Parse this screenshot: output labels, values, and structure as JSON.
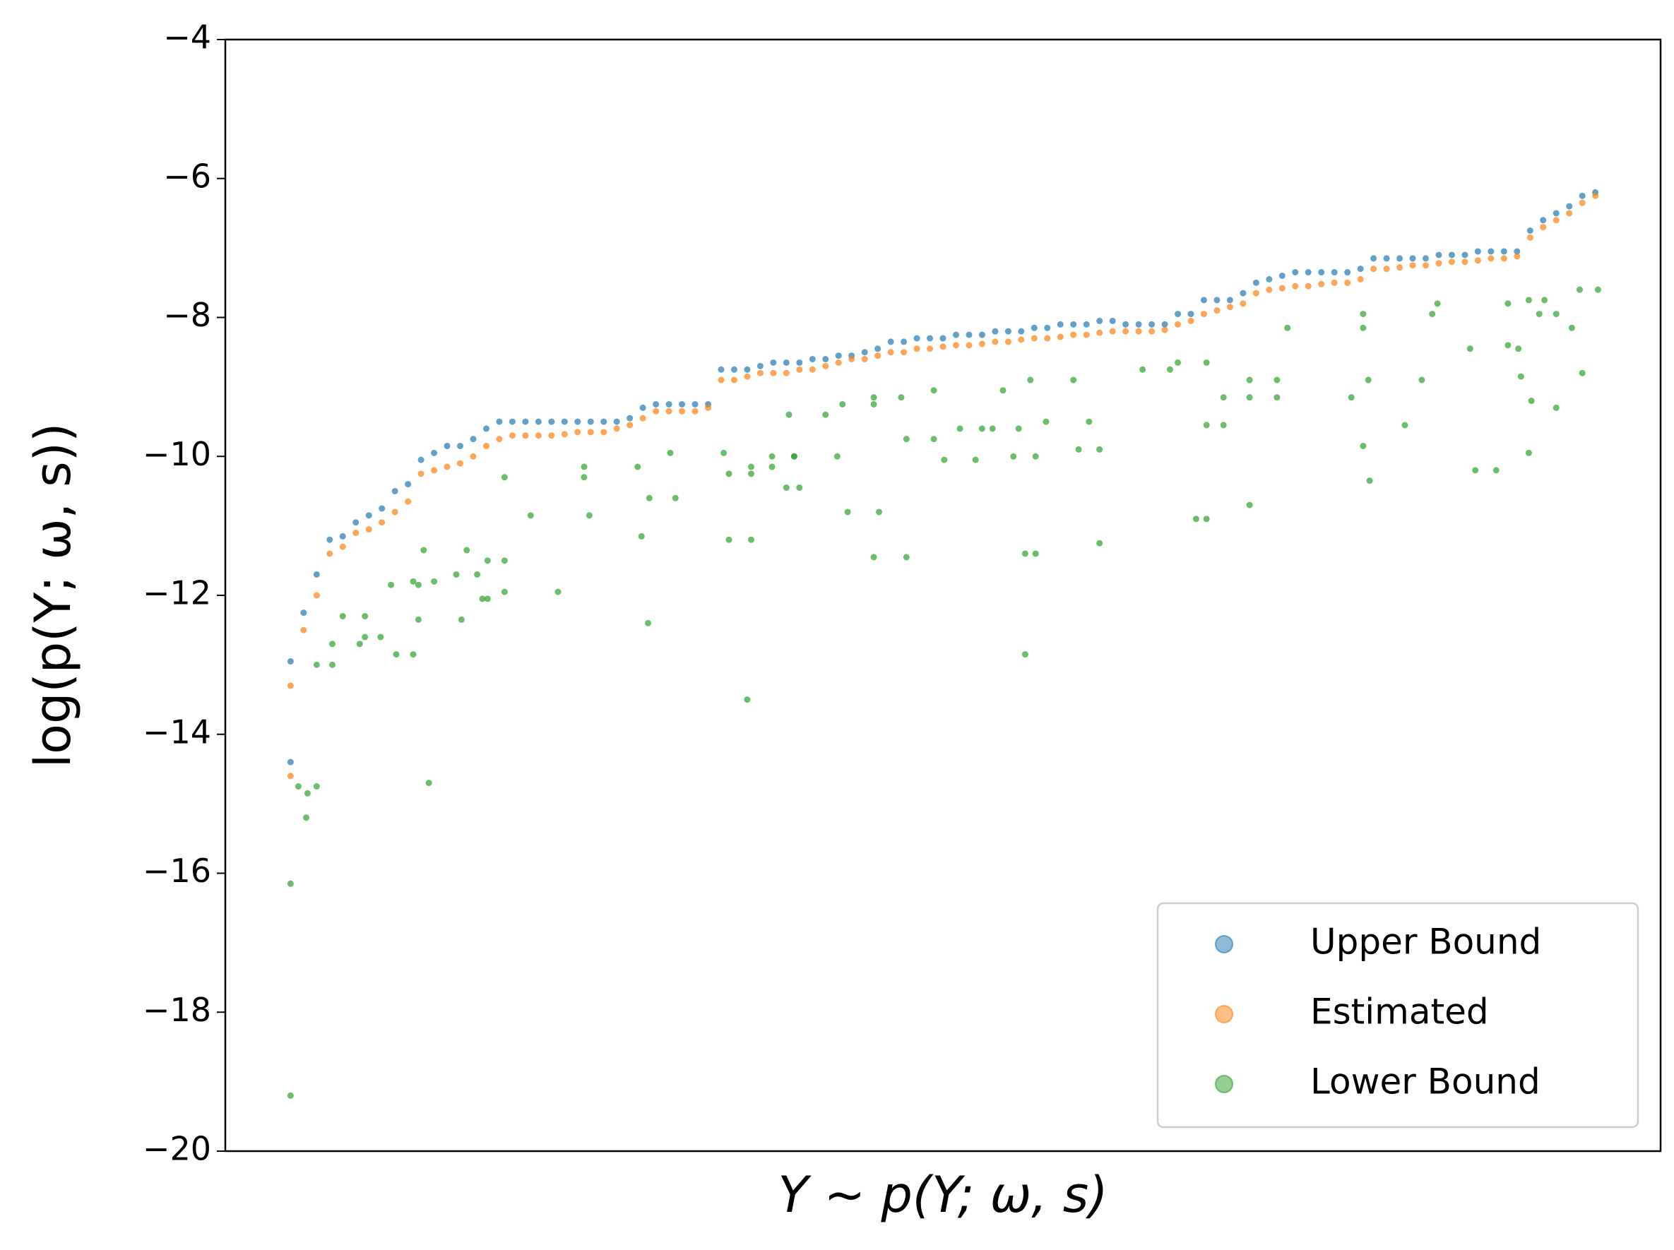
{
  "chart_data": {
    "type": "scatter",
    "xlabel": "Y ~ p(Y; ω, s)",
    "ylabel": "log(p(Y; ω, s))",
    "xlim": [
      -5,
      105
    ],
    "ylim": [
      -20,
      -4
    ],
    "yticks": [
      {
        "value": -4,
        "label": "−4"
      },
      {
        "value": -6,
        "label": "−6"
      },
      {
        "value": -8,
        "label": "−8"
      },
      {
        "value": -10,
        "label": "−10"
      },
      {
        "value": -12,
        "label": "−12"
      },
      {
        "value": -14,
        "label": "−14"
      },
      {
        "value": -16,
        "label": "−16"
      },
      {
        "value": -18,
        "label": "−18"
      },
      {
        "value": -20,
        "label": "−20"
      }
    ],
    "grid": false,
    "legend": "lower right",
    "series": [
      {
        "name": "Upper Bound",
        "color": "#1f77b4",
        "x": [
          0,
          1,
          2,
          3,
          4,
          5,
          6,
          7,
          8,
          9,
          10,
          11,
          12,
          13,
          14,
          15,
          16,
          17,
          18,
          19,
          20,
          21,
          22,
          23,
          24,
          25,
          26,
          27,
          28,
          29,
          30,
          31,
          32,
          33,
          34,
          35,
          36,
          37,
          38,
          39,
          40,
          41,
          42,
          43,
          44,
          45,
          46,
          47,
          48,
          49,
          50,
          51,
          52,
          53,
          54,
          55,
          56,
          57,
          58,
          59,
          60,
          61,
          62,
          63,
          64,
          65,
          66,
          67,
          68,
          69,
          70,
          71,
          72,
          73,
          74,
          75,
          76,
          77,
          78,
          79,
          80,
          81,
          82,
          83,
          84,
          85,
          86,
          87,
          88,
          89,
          90,
          91,
          92,
          93,
          94,
          95,
          96,
          97,
          98,
          99,
          100,
          0
        ],
        "values": [
          -12.95,
          -12.25,
          -11.7,
          -11.2,
          -11.15,
          -10.95,
          -10.85,
          -10.75,
          -10.5,
          -10.4,
          -10.05,
          -9.95,
          -9.85,
          -9.85,
          -9.75,
          -9.6,
          -9.5,
          -9.5,
          -9.5,
          -9.5,
          -9.5,
          -9.5,
          -9.5,
          -9.5,
          -9.5,
          -9.5,
          -9.45,
          -9.3,
          -9.25,
          -9.25,
          -9.25,
          -9.25,
          -9.25,
          -8.75,
          -8.75,
          -8.75,
          -8.7,
          -8.65,
          -8.65,
          -8.65,
          -8.6,
          -8.6,
          -8.55,
          -8.55,
          -8.5,
          -8.45,
          -8.35,
          -8.35,
          -8.3,
          -8.3,
          -8.3,
          -8.25,
          -8.25,
          -8.25,
          -8.2,
          -8.2,
          -8.2,
          -8.15,
          -8.15,
          -8.1,
          -8.1,
          -8.1,
          -8.05,
          -8.05,
          -8.1,
          -8.1,
          -8.1,
          -8.1,
          -7.95,
          -7.95,
          -7.75,
          -7.75,
          -7.75,
          -7.65,
          -7.5,
          -7.45,
          -7.4,
          -7.35,
          -7.35,
          -7.35,
          -7.35,
          -7.35,
          -7.3,
          -7.15,
          -7.15,
          -7.15,
          -7.15,
          -7.15,
          -7.1,
          -7.1,
          -7.1,
          -7.05,
          -7.05,
          -7.05,
          -7.05,
          -6.75,
          -6.6,
          -6.5,
          -6.4,
          -6.25,
          -6.2,
          -14.4
        ]
      },
      {
        "name": "Estimated",
        "color": "#ff7f0e",
        "x": [
          0,
          1,
          2,
          3,
          4,
          5,
          6,
          7,
          8,
          9,
          10,
          11,
          12,
          13,
          14,
          15,
          16,
          17,
          18,
          19,
          20,
          21,
          22,
          23,
          24,
          25,
          26,
          27,
          28,
          29,
          30,
          31,
          32,
          33,
          34,
          35,
          36,
          37,
          38,
          39,
          40,
          41,
          42,
          43,
          44,
          45,
          46,
          47,
          48,
          49,
          50,
          51,
          52,
          53,
          54,
          55,
          56,
          57,
          58,
          59,
          60,
          61,
          62,
          63,
          64,
          65,
          66,
          67,
          68,
          69,
          70,
          71,
          72,
          73,
          74,
          75,
          76,
          77,
          78,
          79,
          80,
          81,
          82,
          83,
          84,
          85,
          86,
          87,
          88,
          89,
          90,
          91,
          92,
          93,
          94,
          95,
          96,
          97,
          98,
          99,
          100,
          0
        ],
        "values": [
          -13.3,
          -12.5,
          -12.0,
          -11.4,
          -11.3,
          -11.1,
          -11.05,
          -10.95,
          -10.8,
          -10.65,
          -10.25,
          -10.2,
          -10.15,
          -10.1,
          -10.0,
          -9.85,
          -9.75,
          -9.7,
          -9.7,
          -9.7,
          -9.7,
          -9.68,
          -9.65,
          -9.65,
          -9.65,
          -9.6,
          -9.55,
          -9.45,
          -9.35,
          -9.35,
          -9.35,
          -9.35,
          -9.3,
          -8.9,
          -8.9,
          -8.85,
          -8.8,
          -8.8,
          -8.8,
          -8.75,
          -8.75,
          -8.7,
          -8.65,
          -8.6,
          -8.6,
          -8.55,
          -8.5,
          -8.5,
          -8.45,
          -8.45,
          -8.42,
          -8.4,
          -8.4,
          -8.38,
          -8.35,
          -8.35,
          -8.32,
          -8.3,
          -8.3,
          -8.28,
          -8.25,
          -8.25,
          -8.22,
          -8.2,
          -8.2,
          -8.2,
          -8.2,
          -8.18,
          -8.1,
          -8.05,
          -7.95,
          -7.9,
          -7.85,
          -7.8,
          -7.65,
          -7.6,
          -7.58,
          -7.55,
          -7.55,
          -7.52,
          -7.5,
          -7.5,
          -7.45,
          -7.3,
          -7.3,
          -7.28,
          -7.25,
          -7.25,
          -7.22,
          -7.2,
          -7.2,
          -7.18,
          -7.15,
          -7.15,
          -7.12,
          -6.85,
          -6.7,
          -6.6,
          -6.5,
          -6.35,
          -6.25,
          -14.6
        ]
      },
      {
        "name": "Lower Bound",
        "color": "#2ca02c",
        "x": [
          0,
          0,
          0.6,
          2.0,
          1.3,
          1.2,
          2.0,
          3.2,
          3.2,
          5.3,
          4.0,
          5.7,
          5.7,
          6.9,
          7.7,
          9.8,
          9.4,
          11.0,
          10.2,
          13.5,
          9.8,
          13.1,
          8.1,
          9.4,
          12.7,
          14.3,
          15.1,
          16.4,
          14.7,
          15.1,
          16.4,
          20.5,
          10.6,
          16.4,
          22.5,
          18.4,
          22.9,
          22.5,
          26.6,
          26.9,
          27.4,
          27.5,
          29.5,
          29.1,
          33.2,
          33.6,
          35.3,
          35.0,
          33.6,
          35.3,
          35.3,
          36.9,
          36.9,
          38.6,
          38.0,
          39.0,
          38.2,
          41.0,
          38.6,
          41.9,
          42.3,
          44.7,
          42.7,
          45.1,
          44.7,
          46.8,
          44.7,
          47.2,
          47.2,
          49.3,
          49.3,
          54.6,
          51.3,
          53.0,
          50.1,
          52.5,
          53.8,
          55.8,
          55.4,
          57.1,
          56.7,
          60.0,
          56.3,
          57.1,
          56.3,
          57.9,
          61.2,
          60.4,
          62.0,
          62.0,
          65.3,
          67.4,
          68.0,
          70.2,
          69.4,
          70.2,
          70.2,
          71.5,
          73.5,
          71.5,
          73.5,
          73.5,
          75.6,
          75.6,
          81.3,
          76.4,
          82.2,
          82.2,
          82.7,
          82.2,
          87.5,
          82.6,
          86.7,
          87.9,
          93.3,
          85.4,
          90.4,
          94.1,
          90.8,
          92.4,
          94.9,
          93.3,
          94.3,
          95.1,
          94.9,
          96.1,
          95.7,
          97.0,
          97.0,
          98.8,
          100.2,
          98.2,
          99.0
        ],
        "values": [
          -16.15,
          -19.2,
          -14.75,
          -14.75,
          -14.85,
          -15.2,
          -13.0,
          -13.0,
          -12.7,
          -12.7,
          -12.3,
          -12.3,
          -12.6,
          -12.6,
          -11.85,
          -11.85,
          -11.8,
          -11.8,
          -11.35,
          -11.35,
          -12.35,
          -12.35,
          -12.85,
          -12.85,
          -11.7,
          -11.7,
          -11.5,
          -11.5,
          -12.05,
          -12.05,
          -11.95,
          -11.95,
          -14.7,
          -10.3,
          -10.3,
          -10.85,
          -10.85,
          -10.15,
          -10.15,
          -11.15,
          -12.4,
          -10.6,
          -10.6,
          -9.95,
          -9.95,
          -11.2,
          -11.2,
          -13.5,
          -10.25,
          -10.25,
          -10.15,
          -10.15,
          -10.0,
          -10.0,
          -10.45,
          -10.45,
          -9.4,
          -9.4,
          -10.0,
          -10.0,
          -9.25,
          -9.25,
          -10.8,
          -10.8,
          -9.15,
          -9.15,
          -11.45,
          -11.45,
          -9.75,
          -9.75,
          -9.05,
          -9.05,
          -9.6,
          -9.6,
          -10.05,
          -10.05,
          -9.6,
          -9.6,
          -10.0,
          -10.0,
          -8.9,
          -8.9,
          -11.4,
          -11.4,
          -12.85,
          -9.5,
          -9.5,
          -9.9,
          -9.9,
          -11.25,
          -8.75,
          -8.75,
          -8.65,
          -8.65,
          -10.9,
          -10.9,
          -9.55,
          -9.55,
          -10.7,
          -9.15,
          -9.15,
          -8.9,
          -8.9,
          -9.15,
          -9.15,
          -8.15,
          -8.15,
          -9.85,
          -10.35,
          -7.95,
          -7.95,
          -8.9,
          -8.9,
          -7.8,
          -7.8,
          -9.55,
          -8.45,
          -8.45,
          -10.2,
          -10.2,
          -9.95,
          -8.4,
          -8.85,
          -9.2,
          -7.75,
          -7.75,
          -7.95,
          -7.95,
          -9.3,
          -7.6,
          -7.6,
          -8.15,
          -8.8
        ]
      }
    ]
  }
}
